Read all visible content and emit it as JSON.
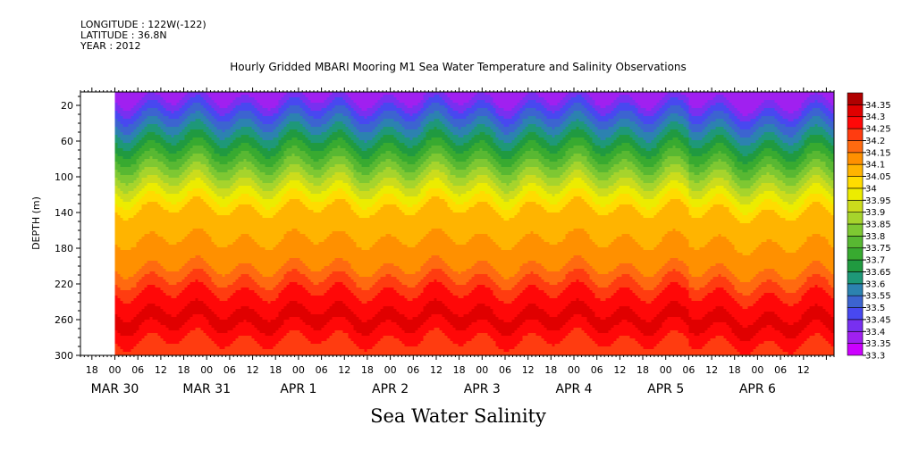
{
  "header": {
    "longitude": "LONGITUDE : 122W(-122)",
    "latitude": "LATITUDE : 36.8N",
    "year": "YEAR : 2012"
  },
  "chart_data": {
    "type": "heatmap",
    "title": "Hourly Gridded MBARI Mooring M1 Sea Water Temperature and Salinity Observations",
    "footer_label": "Sea Water Salinity",
    "ylabel": "DEPTH (m)",
    "y_axis": {
      "range": [
        5,
        300
      ],
      "inverted": true,
      "ticks": [
        20,
        60,
        100,
        140,
        180,
        220,
        260,
        300
      ]
    },
    "x_axis": {
      "start": "2012-03-29 15:00",
      "end": "2012-04-06 20:00",
      "data_start": "2012-03-30 00:00",
      "hour_ticks": [
        {
          "t": "2012-03-29 18:00",
          "label": "18"
        },
        {
          "t": "2012-03-30 00:00",
          "label": "00"
        },
        {
          "t": "2012-03-30 06:00",
          "label": "06"
        },
        {
          "t": "2012-03-30 12:00",
          "label": "12"
        },
        {
          "t": "2012-03-30 18:00",
          "label": "18"
        },
        {
          "t": "2012-03-31 00:00",
          "label": "00"
        },
        {
          "t": "2012-03-31 06:00",
          "label": "06"
        },
        {
          "t": "2012-03-31 12:00",
          "label": "12"
        },
        {
          "t": "2012-03-31 18:00",
          "label": "18"
        },
        {
          "t": "2012-04-01 00:00",
          "label": "00"
        },
        {
          "t": "2012-04-01 06:00",
          "label": "06"
        },
        {
          "t": "2012-04-01 12:00",
          "label": "12"
        },
        {
          "t": "2012-04-01 18:00",
          "label": "18"
        },
        {
          "t": "2012-04-02 00:00",
          "label": "00"
        },
        {
          "t": "2012-04-02 06:00",
          "label": "06"
        },
        {
          "t": "2012-04-02 12:00",
          "label": "12"
        },
        {
          "t": "2012-04-02 18:00",
          "label": "18"
        },
        {
          "t": "2012-04-03 00:00",
          "label": "00"
        },
        {
          "t": "2012-04-03 06:00",
          "label": "06"
        },
        {
          "t": "2012-04-03 12:00",
          "label": "12"
        },
        {
          "t": "2012-04-03 18:00",
          "label": "18"
        },
        {
          "t": "2012-04-04 00:00",
          "label": "00"
        },
        {
          "t": "2012-04-04 06:00",
          "label": "06"
        },
        {
          "t": "2012-04-04 12:00",
          "label": "12"
        },
        {
          "t": "2012-04-04 18:00",
          "label": "18"
        },
        {
          "t": "2012-04-05 00:00",
          "label": "00"
        },
        {
          "t": "2012-04-05 06:00",
          "label": "06"
        },
        {
          "t": "2012-04-05 12:00",
          "label": "12"
        },
        {
          "t": "2012-04-05 18:00",
          "label": "18"
        },
        {
          "t": "2012-04-06 00:00",
          "label": "00"
        },
        {
          "t": "2012-04-06 06:00",
          "label": "06"
        },
        {
          "t": "2012-04-06 12:00",
          "label": "12"
        }
      ],
      "date_labels": [
        {
          "t": "2012-03-30 00:00",
          "label": "MAR 30"
        },
        {
          "t": "2012-03-31 00:00",
          "label": "MAR 31"
        },
        {
          "t": "2012-04-01 00:00",
          "label": "APR  1"
        },
        {
          "t": "2012-04-02 00:00",
          "label": "APR  2"
        },
        {
          "t": "2012-04-03 00:00",
          "label": "APR  3"
        },
        {
          "t": "2012-04-04 00:00",
          "label": "APR  4"
        },
        {
          "t": "2012-04-05 00:00",
          "label": "APR  5"
        },
        {
          "t": "2012-04-06 00:00",
          "label": "APR  6"
        }
      ]
    },
    "colorbar": {
      "levels": [
        33.3,
        33.35,
        33.4,
        33.45,
        33.5,
        33.55,
        33.6,
        33.65,
        33.7,
        33.75,
        33.8,
        33.85,
        33.9,
        33.95,
        34,
        34.05,
        34.1,
        34.15,
        34.2,
        34.25,
        34.3,
        34.35
      ],
      "labels": [
        "33.3",
        "33.35",
        "33.4",
        "33.45",
        "33.5",
        "33.55",
        "33.6",
        "33.65",
        "33.7",
        "33.75",
        "33.8",
        "33.85",
        "33.9",
        "33.95",
        "34",
        "34.05",
        "34.1",
        "34.15",
        "34.2",
        "34.25",
        "34.3",
        "34.35"
      ],
      "colors": [
        "#cc00ff",
        "#a020f0",
        "#7830f0",
        "#4848f0",
        "#3c64d0",
        "#2c82b0",
        "#1e9878",
        "#209a40",
        "#38aa30",
        "#58b832",
        "#7ec832",
        "#a6d42c",
        "#ccdc1c",
        "#ecec00",
        "#ffdc00",
        "#ffb400",
        "#ff9000",
        "#ff6a10",
        "#ff3c10",
        "#ff0808",
        "#e00000",
        "#b00000"
      ]
    },
    "profile": {
      "depth": [
        5,
        15,
        30,
        45,
        60,
        75,
        90,
        105,
        120,
        135,
        150,
        170,
        190,
        205,
        220,
        235,
        250,
        262,
        275,
        290,
        300
      ],
      "salinity": [
        33.36,
        33.41,
        33.5,
        33.58,
        33.66,
        33.74,
        33.82,
        33.9,
        33.98,
        34.05,
        34.08,
        34.1,
        34.12,
        34.16,
        34.22,
        34.27,
        34.3,
        34.31,
        34.28,
        34.22,
        34.2
      ]
    }
  }
}
